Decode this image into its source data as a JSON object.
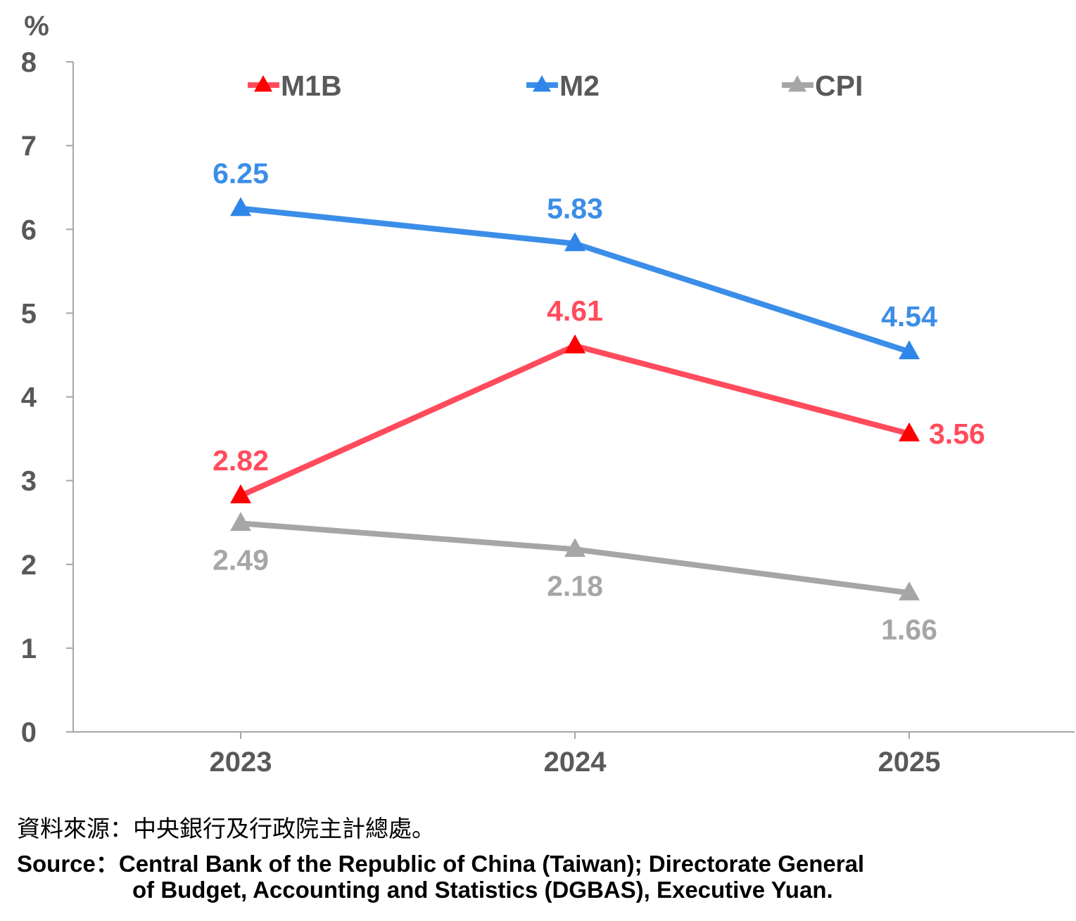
{
  "chart_data": {
    "type": "line",
    "unit_label": "%",
    "categories": [
      "2023",
      "2024",
      "2025"
    ],
    "ylim": [
      0,
      8
    ],
    "yticks": [
      "0",
      "1",
      "2",
      "3",
      "4",
      "5",
      "6",
      "7",
      "8"
    ],
    "series": [
      {
        "name": "M1B",
        "values": [
          2.82,
          4.61,
          3.56
        ],
        "labels": [
          "2.82",
          "4.61",
          "3.56"
        ],
        "color": "#ff4b5c",
        "marker_color": "#ff0000"
      },
      {
        "name": "M2",
        "values": [
          6.25,
          5.83,
          4.54
        ],
        "labels": [
          "6.25",
          "5.83",
          "4.54"
        ],
        "color": "#3b8ee8",
        "marker_color": "#2f86e8"
      },
      {
        "name": "CPI",
        "values": [
          2.49,
          2.18,
          1.66
        ],
        "labels": [
          "2.49",
          "2.18",
          "1.66"
        ],
        "color": "#a6a6a6",
        "marker_color": "#a6a6a6"
      }
    ],
    "legend_position": "top"
  },
  "source": {
    "zh": "資料來源：中央銀行及行政院主計總處。",
    "en_line1": "Source：Central Bank of the Republic of China (Taiwan); Directorate General",
    "en_line2": "of Budget, Accounting and Statistics (DGBAS), Executive Yuan."
  }
}
